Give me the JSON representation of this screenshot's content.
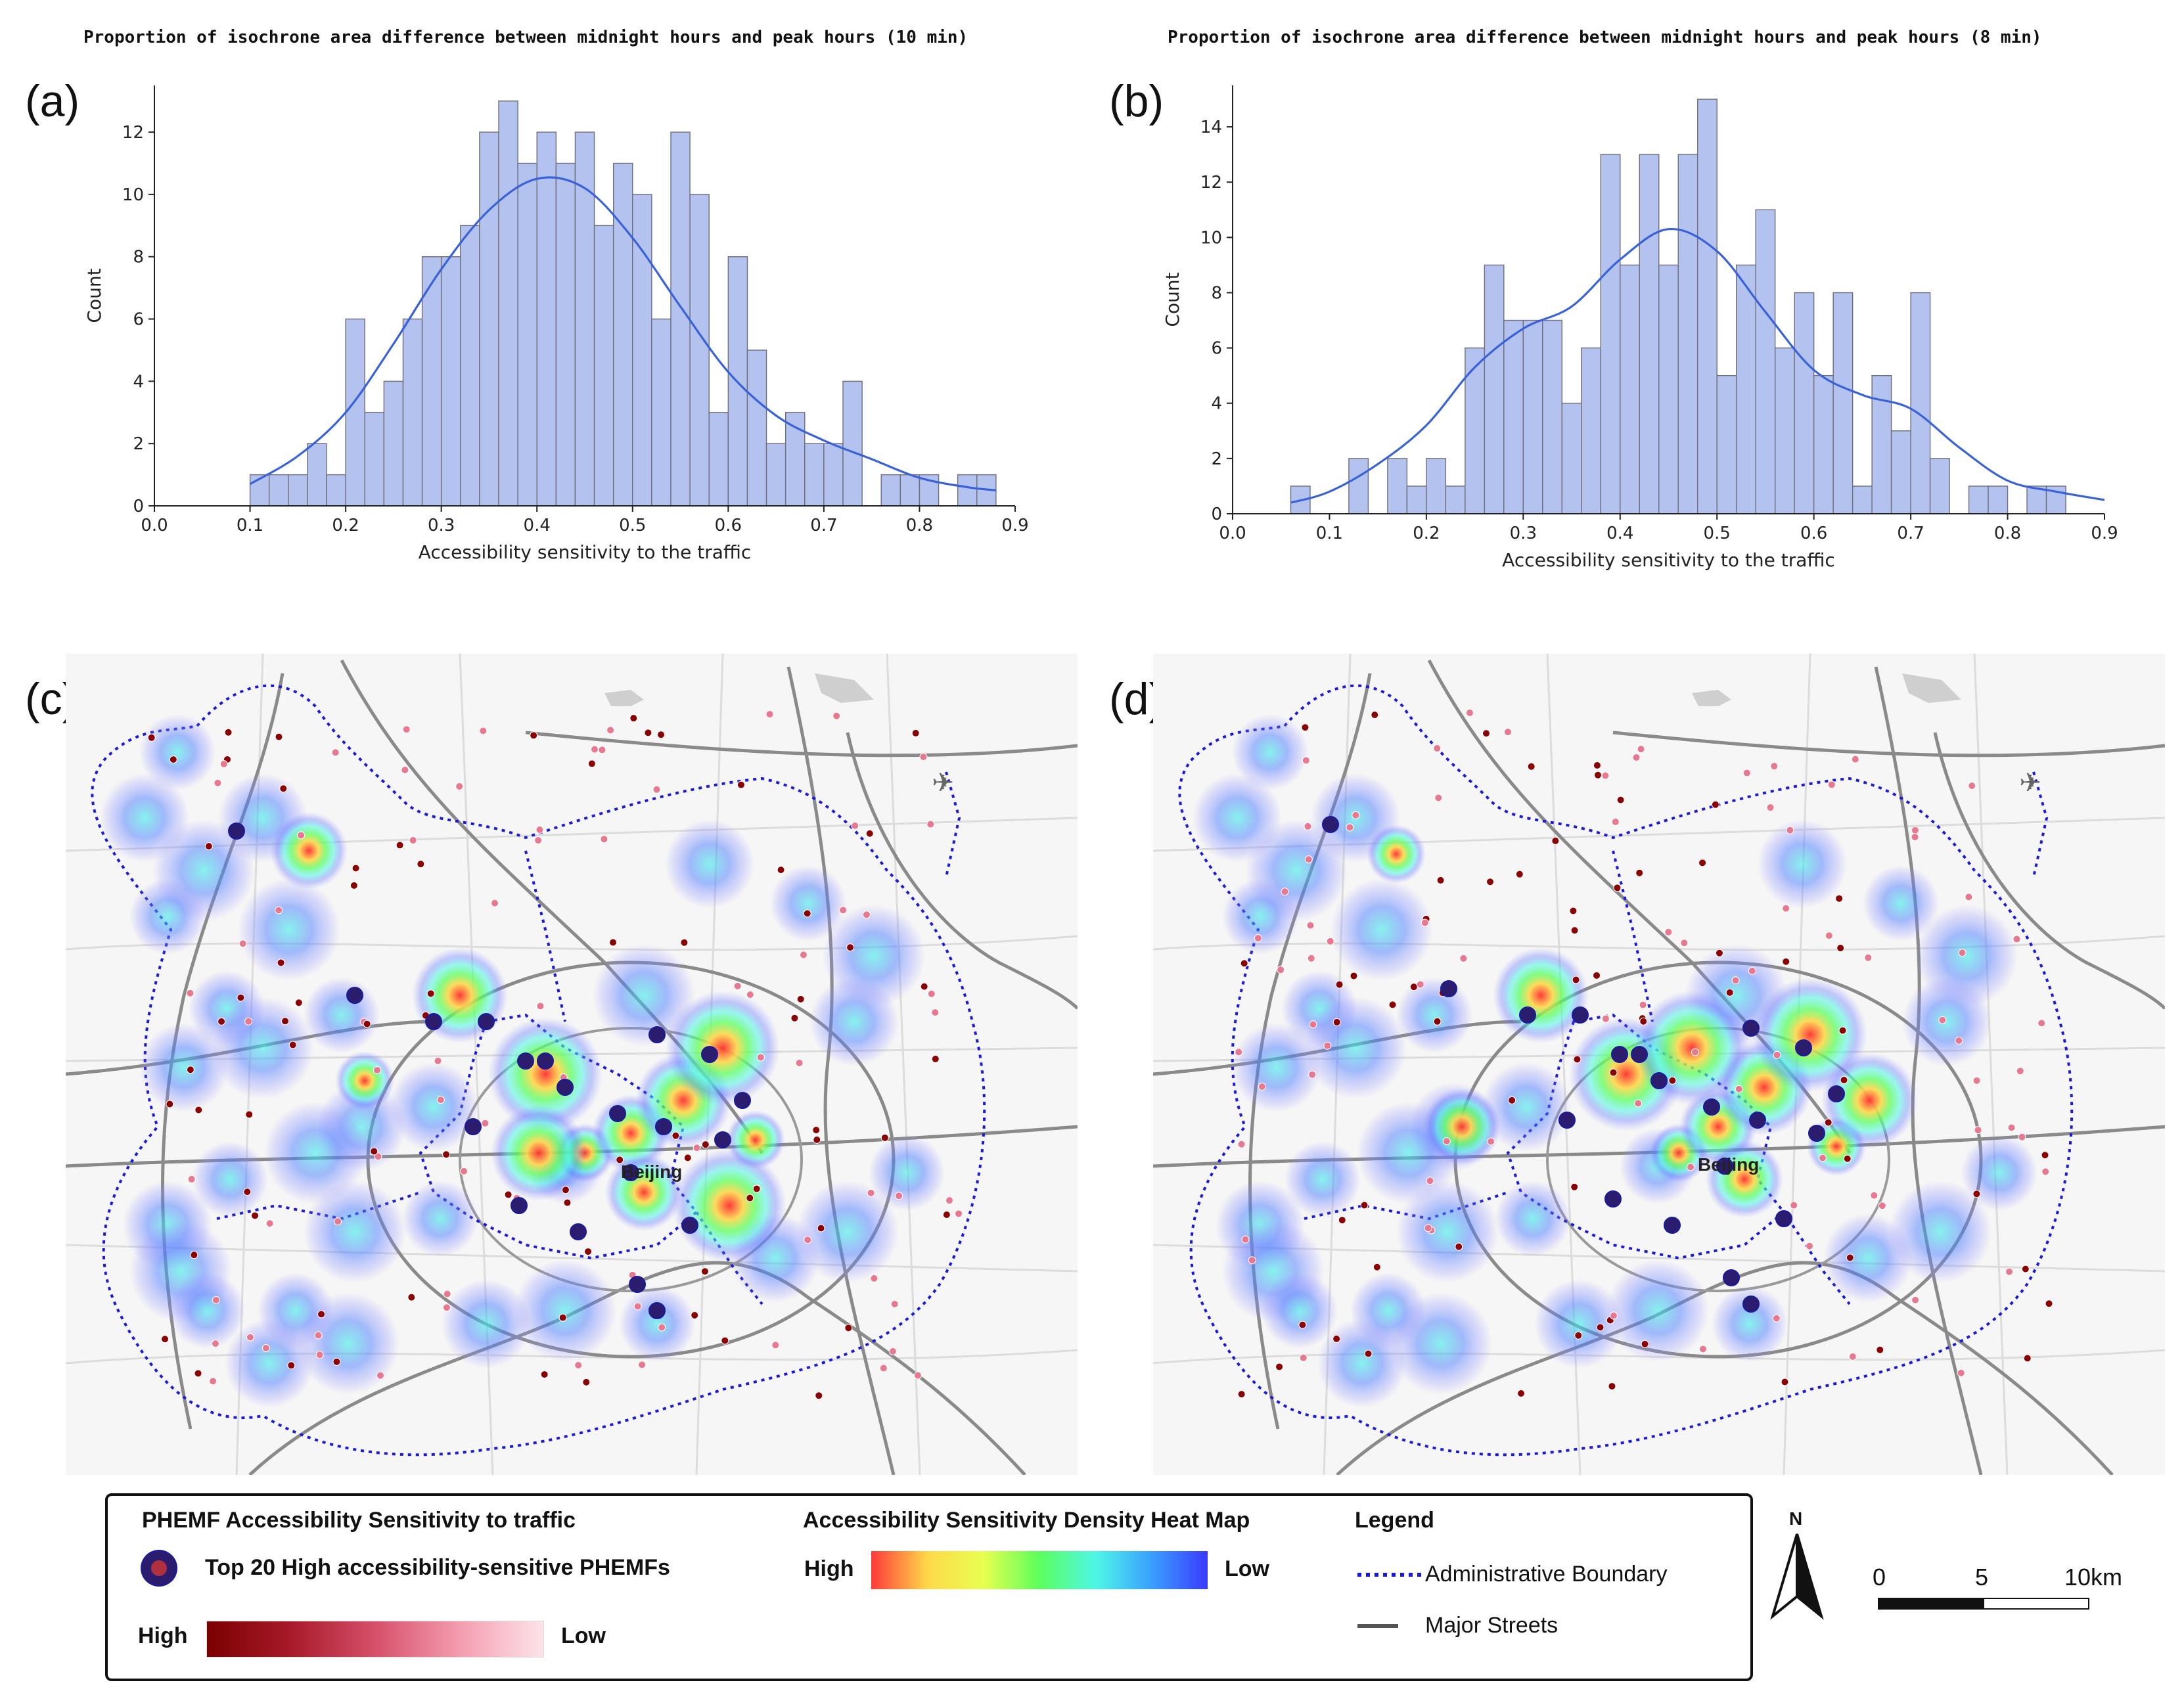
{
  "panels": {
    "a": {
      "label": "(a)",
      "title": "Proportion of isochrone area difference between midnight hours and peak hours (10 min)"
    },
    "b": {
      "label": "(b)",
      "title": "Proportion of isochrone area difference between midnight hours and peak hours (8 min)"
    },
    "c": {
      "label": "(c)",
      "place_label": "Beijing"
    },
    "d": {
      "label": "(d)",
      "place_label": "Beijing"
    }
  },
  "chart_data": [
    {
      "type": "bar",
      "panel": "a",
      "title": "Proportion of isochrone area difference between midnight hours and peak hours (10 min)",
      "xlabel": "Accessibility sensitivity to the traffic",
      "ylabel": "Count",
      "xlim": [
        0.0,
        0.9
      ],
      "ylim": [
        0,
        13.5
      ],
      "xticks": [
        0.0,
        0.1,
        0.2,
        0.3,
        0.4,
        0.5,
        0.6,
        0.7,
        0.8,
        0.9
      ],
      "yticks": [
        0,
        2,
        4,
        6,
        8,
        10,
        12
      ],
      "bin_start": 0.1,
      "bin_width": 0.02,
      "values": [
        1,
        1,
        1,
        2,
        1,
        6,
        3,
        4,
        6,
        8,
        8,
        9,
        12,
        13,
        11,
        12,
        11,
        12,
        9,
        11,
        10,
        6,
        12,
        10,
        3,
        8,
        5,
        2,
        3,
        2,
        2,
        4,
        0,
        1,
        1,
        1,
        0,
        1,
        1
      ],
      "kde_x": [
        0.1,
        0.15,
        0.2,
        0.25,
        0.3,
        0.35,
        0.4,
        0.45,
        0.5,
        0.55,
        0.6,
        0.65,
        0.7,
        0.75,
        0.8,
        0.85,
        0.88
      ],
      "kde_y": [
        0.7,
        1.6,
        3.0,
        5.2,
        7.6,
        9.5,
        10.5,
        10.2,
        8.6,
        6.4,
        4.3,
        2.9,
        2.1,
        1.5,
        0.9,
        0.6,
        0.5
      ]
    },
    {
      "type": "bar",
      "panel": "b",
      "title": "Proportion of isochrone area difference between midnight hours and peak hours (8 min)",
      "xlabel": "Accessibility sensitivity to the traffic",
      "ylabel": "Count",
      "xlim": [
        0.0,
        0.9
      ],
      "ylim": [
        0,
        15.5
      ],
      "xticks": [
        0.0,
        0.1,
        0.2,
        0.3,
        0.4,
        0.5,
        0.6,
        0.7,
        0.8,
        0.9
      ],
      "yticks": [
        0,
        2,
        4,
        6,
        8,
        10,
        12,
        14
      ],
      "bin_start": 0.06,
      "bin_width": 0.02,
      "values": [
        1,
        0,
        0,
        2,
        0,
        2,
        1,
        2,
        1,
        6,
        9,
        7,
        7,
        7,
        4,
        6,
        13,
        9,
        13,
        9,
        13,
        15,
        5,
        9,
        11,
        6,
        8,
        5,
        8,
        1,
        5,
        3,
        8,
        2,
        0,
        1,
        1,
        0,
        1,
        1
      ],
      "kde_x": [
        0.06,
        0.1,
        0.15,
        0.2,
        0.25,
        0.3,
        0.35,
        0.4,
        0.45,
        0.5,
        0.55,
        0.6,
        0.65,
        0.7,
        0.75,
        0.8,
        0.85,
        0.9
      ],
      "kde_y": [
        0.4,
        0.8,
        1.8,
        3.2,
        5.3,
        6.7,
        7.5,
        9.2,
        10.3,
        9.5,
        7.3,
        5.2,
        4.3,
        3.8,
        2.4,
        1.2,
        0.8,
        0.5
      ]
    }
  ],
  "legend": {
    "phemf_title": "PHEMF Accessibility Sensitivity to traffic",
    "top20_label": "Top 20 High accessibility-sensitive PHEMFs",
    "high": "High",
    "low": "Low",
    "heat_title": "Accessibility Sensitivity Density Heat Map",
    "heat_high": "High",
    "heat_low": "Low",
    "legend_title": "Legend",
    "admin_boundary": "Administrative Boundary",
    "major_streets": "Major Streets"
  },
  "north_arrow": "N",
  "scale_bar": {
    "t0": "0",
    "t1": "5",
    "t2": "10km"
  },
  "colors": {
    "bar_fill": "#b3c2ee",
    "bar_edge": "#6e6e7a",
    "kde_line": "#3a62d8",
    "boundary": "#1a1adc",
    "streets": "#777777",
    "point_high": "#8b0000",
    "point_low": "#f8b9c4",
    "top20_fill": "#2b1c6e"
  }
}
